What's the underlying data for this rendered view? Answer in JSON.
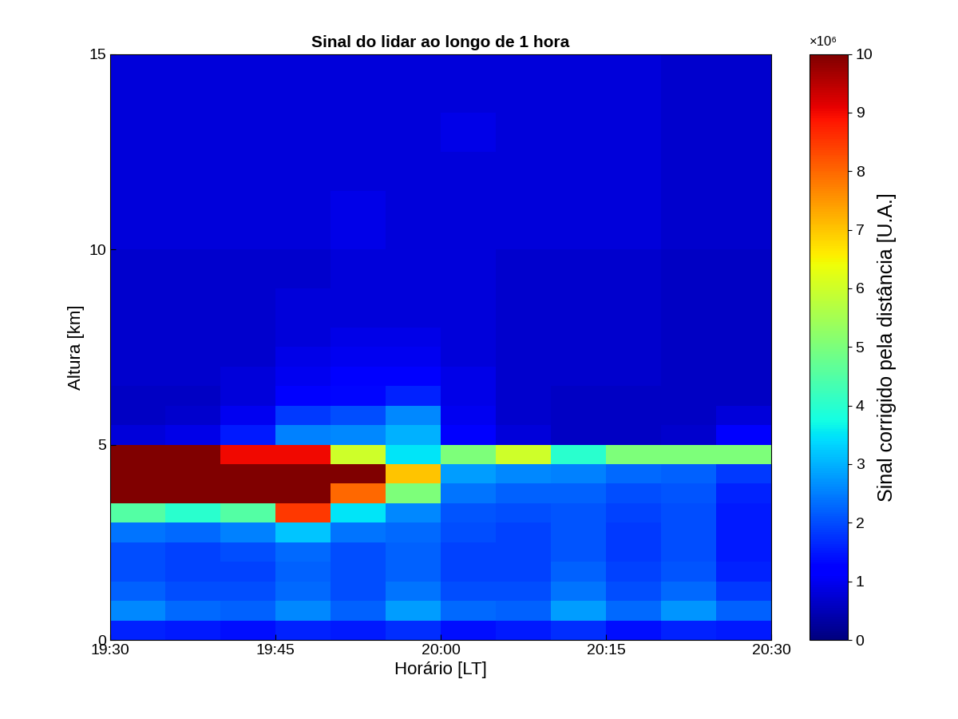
{
  "chart_data": {
    "type": "heatmap",
    "title": "Sinal do lidar ao longo de 1 hora",
    "x_label": "Horário [LT]",
    "y_label": "Altura [km]",
    "x_edges": [
      0,
      5,
      10,
      15,
      20,
      25,
      30,
      35,
      40,
      45,
      50,
      55,
      60
    ],
    "y_edges": [
      0,
      0.5,
      1,
      1.5,
      2,
      2.5,
      3,
      3.5,
      4,
      4.5,
      5,
      5.5,
      6,
      6.5,
      7,
      7.5,
      8,
      8.5,
      9,
      9.5,
      10,
      10.5,
      11,
      11.5,
      12,
      12.5,
      13,
      13.5,
      14,
      14.5,
      15
    ],
    "cells": [
      [
        1.6,
        1.5,
        1.4,
        1.6,
        1.5,
        1.7,
        1.4,
        1.5,
        1.7,
        1.4,
        1.6,
        1.5
      ],
      [
        2.6,
        2.3,
        2.2,
        2.6,
        2.2,
        2.8,
        2.3,
        2.2,
        2.8,
        2.3,
        2.7,
        2.2
      ],
      [
        2.2,
        2.0,
        2.0,
        2.3,
        2.0,
        2.4,
        2.0,
        2.0,
        2.4,
        2.0,
        2.3,
        1.8
      ],
      [
        2.0,
        1.9,
        1.9,
        2.2,
        2.0,
        2.2,
        1.9,
        1.9,
        2.2,
        1.9,
        2.1,
        1.6
      ],
      [
        2.0,
        1.9,
        2.0,
        2.3,
        2.0,
        2.2,
        1.9,
        1.9,
        2.1,
        1.8,
        2.0,
        1.5
      ],
      [
        2.4,
        2.3,
        2.5,
        3.2,
        2.4,
        2.3,
        2.0,
        1.9,
        2.1,
        1.8,
        2.0,
        1.5
      ],
      [
        4.5,
        4.0,
        4.5,
        8.5,
        3.5,
        2.6,
        2.1,
        2.0,
        2.1,
        1.9,
        2.0,
        1.5
      ],
      [
        10,
        10,
        10,
        10,
        8,
        5,
        2.4,
        2.2,
        2.2,
        2.0,
        2.1,
        1.6
      ],
      [
        10,
        10,
        10,
        10,
        10,
        7,
        2.8,
        2.6,
        2.5,
        2.3,
        2.2,
        1.8
      ],
      [
        10,
        10,
        9,
        9,
        6,
        3.5,
        5,
        6,
        4,
        5,
        5,
        5
      ],
      [
        0.8,
        0.9,
        1.5,
        2.5,
        2.6,
        3.0,
        1.2,
        0.8,
        0.6,
        0.6,
        0.7,
        1.2
      ],
      [
        0.6,
        0.7,
        1.0,
        1.8,
        2.0,
        2.6,
        1.0,
        0.7,
        0.6,
        0.6,
        0.6,
        0.8
      ],
      [
        0.6,
        0.6,
        0.8,
        1.2,
        1.3,
        1.6,
        0.9,
        0.7,
        0.6,
        0.6,
        0.6,
        0.6
      ],
      [
        0.7,
        0.7,
        0.8,
        1.0,
        1.1,
        1.2,
        0.9,
        0.7,
        0.7,
        0.7,
        0.6,
        0.6
      ],
      [
        0.7,
        0.7,
        0.7,
        0.9,
        1.0,
        1.0,
        0.8,
        0.7,
        0.7,
        0.7,
        0.6,
        0.6
      ],
      [
        0.7,
        0.7,
        0.7,
        0.8,
        0.9,
        0.9,
        0.8,
        0.7,
        0.7,
        0.7,
        0.6,
        0.6
      ],
      [
        0.7,
        0.7,
        0.7,
        0.8,
        0.8,
        0.8,
        0.8,
        0.7,
        0.7,
        0.7,
        0.6,
        0.6
      ],
      [
        0.7,
        0.7,
        0.7,
        0.8,
        0.8,
        0.8,
        0.8,
        0.7,
        0.7,
        0.7,
        0.6,
        0.6
      ],
      [
        0.7,
        0.7,
        0.7,
        0.7,
        0.8,
        0.8,
        0.8,
        0.7,
        0.7,
        0.7,
        0.6,
        0.6
      ],
      [
        0.7,
        0.7,
        0.7,
        0.7,
        0.8,
        0.8,
        0.8,
        0.7,
        0.7,
        0.7,
        0.6,
        0.6
      ],
      [
        0.8,
        0.8,
        0.8,
        0.8,
        0.9,
        0.8,
        0.8,
        0.8,
        0.8,
        0.8,
        0.7,
        0.7
      ],
      [
        0.8,
        0.8,
        0.8,
        0.8,
        0.9,
        0.8,
        0.8,
        0.8,
        0.8,
        0.8,
        0.7,
        0.7
      ],
      [
        0.8,
        0.8,
        0.8,
        0.8,
        0.9,
        0.8,
        0.8,
        0.8,
        0.8,
        0.8,
        0.7,
        0.7
      ],
      [
        0.8,
        0.8,
        0.8,
        0.8,
        0.8,
        0.8,
        0.8,
        0.8,
        0.8,
        0.8,
        0.7,
        0.7
      ],
      [
        0.8,
        0.8,
        0.8,
        0.8,
        0.8,
        0.8,
        0.8,
        0.8,
        0.8,
        0.8,
        0.7,
        0.7
      ],
      [
        0.8,
        0.8,
        0.8,
        0.8,
        0.8,
        0.8,
        0.9,
        0.8,
        0.8,
        0.8,
        0.7,
        0.7
      ],
      [
        0.8,
        0.8,
        0.8,
        0.8,
        0.8,
        0.8,
        0.9,
        0.8,
        0.8,
        0.8,
        0.7,
        0.7
      ],
      [
        0.8,
        0.8,
        0.8,
        0.8,
        0.8,
        0.8,
        0.8,
        0.8,
        0.8,
        0.8,
        0.7,
        0.7
      ],
      [
        0.8,
        0.8,
        0.8,
        0.8,
        0.8,
        0.8,
        0.8,
        0.8,
        0.8,
        0.8,
        0.7,
        0.7
      ],
      [
        0.8,
        0.8,
        0.8,
        0.8,
        0.8,
        0.8,
        0.8,
        0.8,
        0.8,
        0.8,
        0.7,
        0.7
      ]
    ],
    "xlim": [
      0,
      60
    ],
    "ylim": [
      0,
      15
    ],
    "xticks": [
      {
        "value": 0,
        "label": "19:30"
      },
      {
        "value": 15,
        "label": "19:45"
      },
      {
        "value": 30,
        "label": "20:00"
      },
      {
        "value": 45,
        "label": "20:15"
      },
      {
        "value": 60,
        "label": "20:30"
      }
    ],
    "yticks": [
      0,
      5,
      10,
      15
    ],
    "colorbar": {
      "label": "Sinal corrigido pela distância [U.A.]",
      "range": [
        0,
        10
      ],
      "ticks": [
        0,
        1,
        2,
        3,
        4,
        5,
        6,
        7,
        8,
        9,
        10
      ],
      "multiplier_label": "×10⁶"
    }
  }
}
